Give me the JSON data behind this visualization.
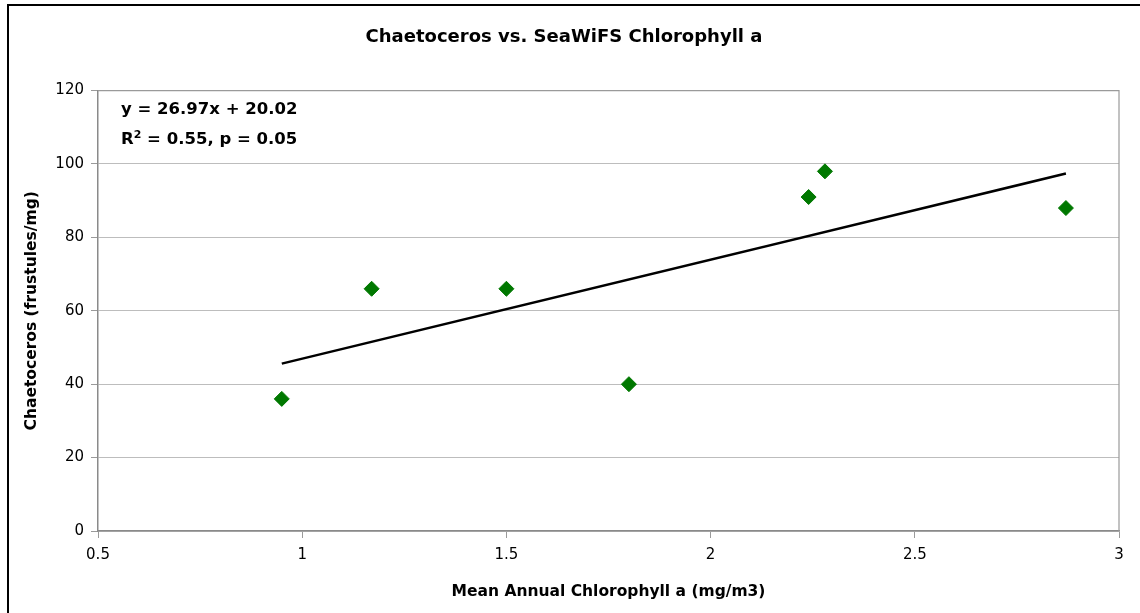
{
  "chart_data": {
    "type": "scatter",
    "title": "Chaetoceros vs. SeaWiFS Chlorophyll a",
    "xlabel": "Mean Annual Chlorophyll a (mg/m3)",
    "ylabel": "Chaetoceros (frustules/mg)",
    "annotations": [
      "y = 26.97x + 20.02",
      "R$^{2}$ = 0.55, p = 0.05"
    ],
    "x": [
      0.95,
      1.17,
      1.5,
      1.8,
      2.24,
      2.28,
      2.87
    ],
    "series": [
      {
        "color": "#007800",
        "values": [
          36,
          66,
          66,
          40,
          91,
          98,
          88
        ]
      },
      {
        "type": "line",
        "color": "#000000",
        "x": [
          0.95,
          2.87
        ],
        "values": [
          45.6,
          97.4
        ],
        "marker": "none"
      }
    ],
    "xlim": [
      0.5,
      3
    ],
    "xticks": [
      0.5,
      1,
      1.5,
      2,
      2.5,
      3
    ],
    "ylim": [
      0,
      120
    ],
    "yticks": [
      0,
      20,
      40,
      60,
      80,
      100,
      120
    ],
    "grid": "y",
    "marker": "diamond"
  }
}
